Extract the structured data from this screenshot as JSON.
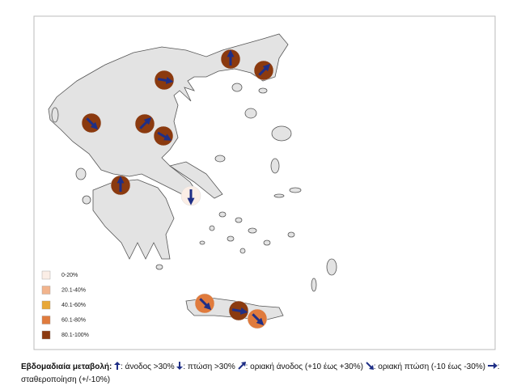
{
  "legend": {
    "items": [
      {
        "label": "0-20%",
        "color": "#fbeee6"
      },
      {
        "label": "20.1-40%",
        "color": "#f2b48c"
      },
      {
        "label": "40.1-60%",
        "color": "#e8a838"
      },
      {
        "label": "60.1-80%",
        "color": "#e07b3d"
      },
      {
        "label": "80.1-100%",
        "color": "#8b3a0f"
      }
    ]
  },
  "caption": {
    "title": "Εβδομαδιαία μεταβολή:",
    "items": [
      ": άνοδος >30%",
      ": πτώση >30%",
      ": οριακή άνοδος (+10 έως +30%)",
      ": οριακή πτώση  (-10 έως -30%)",
      ":  σταθεροποίηση (+/-10%)"
    ]
  }
}
